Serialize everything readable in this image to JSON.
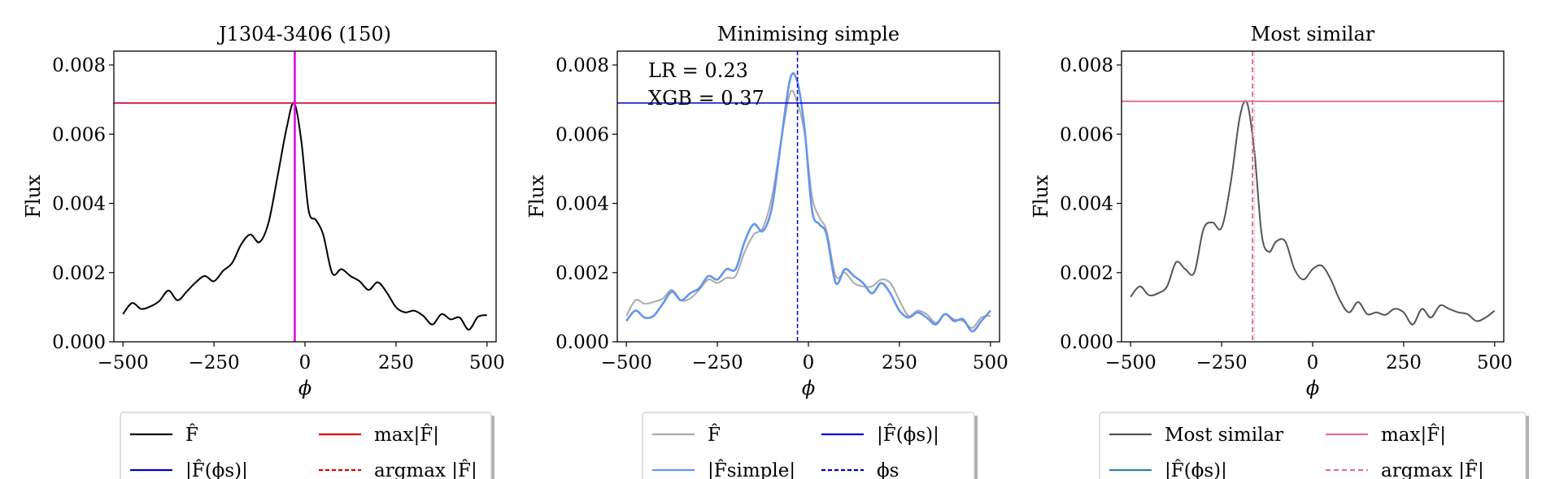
{
  "chart_data": [
    {
      "type": "line",
      "title": "J1304-3406 (150)",
      "xlabel": "ϕ",
      "ylabel": "Flux",
      "xlim": [
        -525,
        525
      ],
      "ylim": [
        0,
        0.0084
      ],
      "xticks": [
        "−500",
        "−250",
        "0",
        "250",
        "500"
      ],
      "yticks": [
        "0.000",
        "0.002",
        "0.004",
        "0.006",
        "0.008"
      ],
      "series": [
        {
          "role": "curve",
          "color": "#000000",
          "x": [
            -500,
            -475,
            -450,
            -425,
            -400,
            -375,
            -350,
            -325,
            -300,
            -275,
            -250,
            -225,
            -200,
            -175,
            -150,
            -125,
            -100,
            -75,
            -50,
            -30,
            -10,
            10,
            30,
            50,
            75,
            100,
            125,
            150,
            175,
            200,
            225,
            250,
            275,
            300,
            325,
            350,
            375,
            400,
            425,
            450,
            475,
            500
          ],
          "y": [
            0.0008,
            0.00112,
            0.00095,
            0.00102,
            0.00118,
            0.00148,
            0.0012,
            0.00145,
            0.00172,
            0.0019,
            0.00175,
            0.00205,
            0.00228,
            0.00282,
            0.0031,
            0.00288,
            0.00345,
            0.0048,
            0.0062,
            0.0069,
            0.0058,
            0.0038,
            0.00352,
            0.0031,
            0.00198,
            0.0021,
            0.0019,
            0.00175,
            0.0015,
            0.00172,
            0.00142,
            0.001,
            0.00085,
            0.0009,
            0.00075,
            0.0005,
            0.0008,
            0.00065,
            0.0007,
            0.00035,
            0.00072,
            0.00077
          ]
        }
      ],
      "hlines": [
        {
          "y": 0.0069,
          "color": "#d8234e",
          "width": 2,
          "dash": ""
        }
      ],
      "vlines": [
        {
          "x": -28,
          "color": "#e00000",
          "width": 1.5,
          "dash": "5,3"
        },
        {
          "x": -28,
          "color": "#e000e0",
          "width": 2.5,
          "dash": ""
        }
      ],
      "annotations": [],
      "legend": [
        {
          "label": "F̂",
          "color": "#000000",
          "dash": ""
        },
        {
          "label": "max|F̂|",
          "color": "#e00000",
          "dash": ""
        },
        {
          "label": "|F̂(ϕs)|",
          "color": "#0000cc",
          "dash": ""
        },
        {
          "label": "argmax |F̂|",
          "color": "#e00000",
          "dash": "5,3"
        }
      ]
    },
    {
      "type": "line",
      "title": "Minimising simple",
      "xlabel": "ϕ",
      "ylabel": "Flux",
      "xlim": [
        -525,
        525
      ],
      "ylim": [
        0,
        0.0084
      ],
      "xticks": [
        "−500",
        "−250",
        "0",
        "250",
        "500"
      ],
      "yticks": [
        "0.000",
        "0.002",
        "0.004",
        "0.006",
        "0.008"
      ],
      "series": [
        {
          "role": "curve",
          "color": "#aaaaaa",
          "x": [
            -500,
            -475,
            -450,
            -425,
            -400,
            -375,
            -350,
            -325,
            -300,
            -275,
            -250,
            -225,
            -200,
            -175,
            -150,
            -125,
            -100,
            -75,
            -50,
            -30,
            -10,
            10,
            30,
            50,
            75,
            100,
            125,
            150,
            175,
            200,
            225,
            250,
            275,
            300,
            325,
            350,
            375,
            400,
            425,
            450,
            475,
            500
          ],
          "y": [
            0.00075,
            0.0012,
            0.0011,
            0.00115,
            0.00125,
            0.0015,
            0.0012,
            0.00125,
            0.0015,
            0.0018,
            0.0017,
            0.00185,
            0.0019,
            0.0026,
            0.0031,
            0.0033,
            0.0042,
            0.0058,
            0.0072,
            0.0069,
            0.006,
            0.0042,
            0.0036,
            0.0032,
            0.0019,
            0.002,
            0.0017,
            0.0016,
            0.0016,
            0.0018,
            0.0017,
            0.0012,
            0.00075,
            0.0009,
            0.0008,
            0.00055,
            0.0008,
            0.00065,
            0.0006,
            0.0004,
            0.0007,
            0.00075
          ]
        },
        {
          "role": "curve",
          "color": "#6495ed",
          "x": [
            -500,
            -475,
            -450,
            -425,
            -400,
            -375,
            -350,
            -325,
            -300,
            -275,
            -250,
            -225,
            -200,
            -175,
            -150,
            -125,
            -100,
            -75,
            -50,
            -30,
            -10,
            10,
            30,
            50,
            75,
            100,
            125,
            150,
            175,
            200,
            225,
            250,
            275,
            300,
            325,
            350,
            375,
            400,
            425,
            450,
            475,
            500
          ],
          "y": [
            0.0006,
            0.0009,
            0.0007,
            0.00075,
            0.0011,
            0.00145,
            0.0012,
            0.0014,
            0.00155,
            0.0019,
            0.0018,
            0.0021,
            0.0021,
            0.0029,
            0.0034,
            0.0032,
            0.0039,
            0.0058,
            0.0076,
            0.0075,
            0.0061,
            0.0038,
            0.0034,
            0.0031,
            0.0017,
            0.0021,
            0.0019,
            0.0017,
            0.0014,
            0.0017,
            0.0014,
            0.0009,
            0.0007,
            0.00085,
            0.0007,
            0.0005,
            0.0008,
            0.0006,
            0.00065,
            0.0003,
            0.0006,
            0.0009
          ]
        }
      ],
      "hlines": [
        {
          "y": 0.0069,
          "color": "#0000cc",
          "width": 1.5,
          "dash": ""
        }
      ],
      "vlines": [
        {
          "x": -30,
          "color": "#0000cc",
          "width": 1.5,
          "dash": "5,3"
        }
      ],
      "annotations": [
        {
          "text": "LR = 0.23",
          "x": -440,
          "y": 0.00765
        },
        {
          "text": "XGB = 0.37",
          "x": -440,
          "y": 0.00685
        }
      ],
      "legend": [
        {
          "label": "F̂",
          "color": "#aaaaaa",
          "dash": ""
        },
        {
          "label": "|F̂(ϕs)|",
          "color": "#0000cc",
          "dash": ""
        },
        {
          "label": "|F̂simple|",
          "color": "#6495ed",
          "dash": ""
        },
        {
          "label": "ϕs",
          "color": "#0000cc",
          "dash": "5,3"
        }
      ]
    },
    {
      "type": "line",
      "title": "Most similar",
      "xlabel": "ϕ",
      "ylabel": "Flux",
      "xlim": [
        -525,
        525
      ],
      "ylim": [
        0,
        0.0084
      ],
      "xticks": [
        "−500",
        "−250",
        "0",
        "250",
        "500"
      ],
      "yticks": [
        "0.000",
        "0.002",
        "0.004",
        "0.006",
        "0.008"
      ],
      "series": [
        {
          "role": "curve",
          "color": "#555555",
          "x": [
            -500,
            -475,
            -450,
            -425,
            -400,
            -375,
            -350,
            -325,
            -300,
            -275,
            -250,
            -225,
            -200,
            -180,
            -160,
            -140,
            -120,
            -100,
            -75,
            -50,
            -25,
            0,
            25,
            50,
            75,
            100,
            125,
            150,
            175,
            200,
            225,
            250,
            275,
            300,
            325,
            350,
            375,
            400,
            425,
            450,
            475,
            500
          ],
          "y": [
            0.0013,
            0.0016,
            0.00135,
            0.0014,
            0.0016,
            0.0023,
            0.0021,
            0.002,
            0.00325,
            0.00345,
            0.0033,
            0.0046,
            0.0065,
            0.0069,
            0.0055,
            0.0031,
            0.0026,
            0.0029,
            0.0029,
            0.0021,
            0.0018,
            0.0021,
            0.0022,
            0.0018,
            0.0012,
            0.00085,
            0.00115,
            0.0008,
            0.00085,
            0.00078,
            0.00095,
            0.00085,
            0.0005,
            0.00095,
            0.0007,
            0.00105,
            0.00095,
            0.00085,
            0.0008,
            0.0006,
            0.0007,
            0.0009
          ]
        }
      ],
      "hlines": [
        {
          "y": 0.00695,
          "color": "#e07090",
          "width": 2,
          "dash": ""
        }
      ],
      "vlines": [
        {
          "x": -165,
          "color": "#e07090",
          "width": 2,
          "dash": "6,4"
        },
        {
          "x": -160,
          "color": "#c0c0c0",
          "width": 1,
          "dash": "2,2"
        }
      ],
      "annotations": [],
      "legend": [
        {
          "label": "Most similar",
          "color": "#555555",
          "dash": ""
        },
        {
          "label": "max|F̂|",
          "color": "#e07090",
          "dash": ""
        },
        {
          "label": "|F̂(ϕs)|",
          "color": "#3b7e9e",
          "dash": ""
        },
        {
          "label": "argmax |F̂|",
          "color": "#e07090",
          "dash": "6,4"
        }
      ]
    }
  ]
}
